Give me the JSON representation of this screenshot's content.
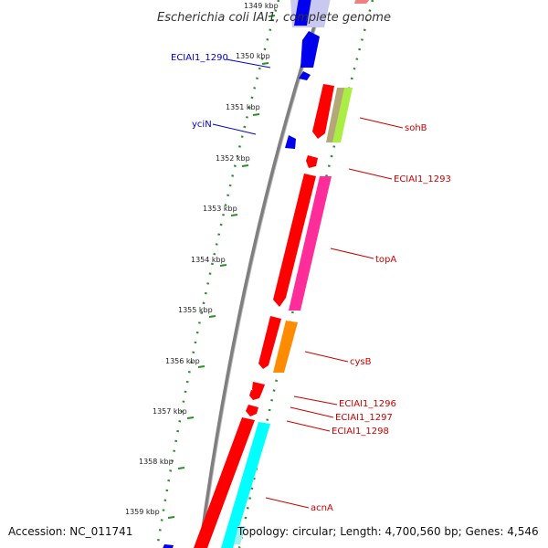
{
  "title": "Escherichia coli IAI1, complete genome",
  "accession": "Accession: NC_011741",
  "topology": "Topology: circular; Length: 4,700,560 bp; Genes: 4,546",
  "colors": {
    "backbone": "#808080",
    "minor_tick": "#2e8b2e",
    "reverse_gene": "#0000ee",
    "forward_gene": "#ff0000",
    "forward_label": "#cc0000",
    "reverse_label": "#0000cc"
  },
  "kbp_ticks": [
    "1349 kbp",
    "1350 kbp",
    "1351 kbp",
    "1352 kbp",
    "1353 kbp",
    "1354 kbp",
    "1355 kbp",
    "1356 kbp",
    "1357 kbp",
    "1358 kbp",
    "1359 kbp"
  ],
  "gene_labels": [
    {
      "name": "ECIAI1_1290",
      "strand": "reverse"
    },
    {
      "name": "yciN",
      "strand": "reverse"
    },
    {
      "name": "sohB",
      "strand": "forward"
    },
    {
      "name": "ECIAI1_1293",
      "strand": "forward"
    },
    {
      "name": "topA",
      "strand": "forward"
    },
    {
      "name": "cysB",
      "strand": "forward"
    },
    {
      "name": "ECIAI1_1296",
      "strand": "forward"
    },
    {
      "name": "ECIAI1_1297",
      "strand": "forward"
    },
    {
      "name": "ECIAI1_1298",
      "strand": "forward"
    },
    {
      "name": "acnA",
      "strand": "forward"
    }
  ]
}
